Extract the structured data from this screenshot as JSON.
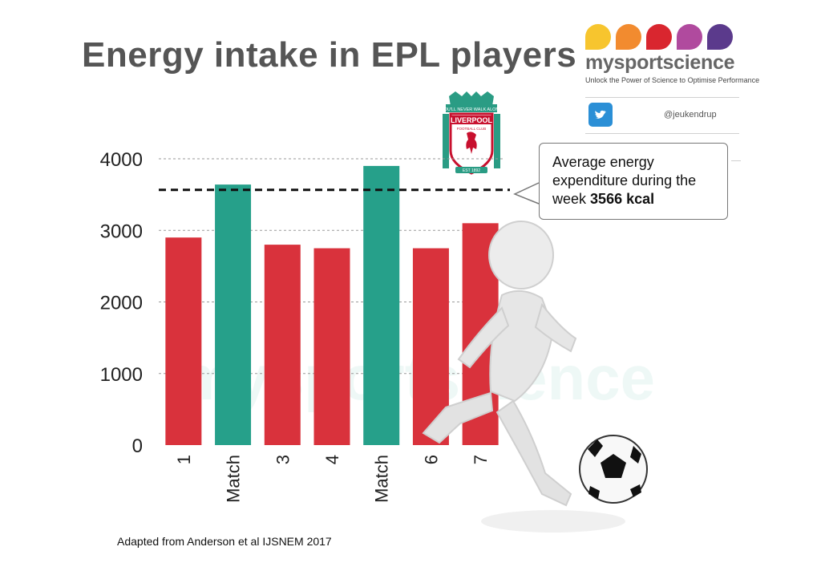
{
  "title": "Energy intake in EPL players",
  "brand": {
    "name": "mysportscience",
    "tagline": "Unlock the Power of Science to Optimise Performance",
    "handle": "@jeukendrup",
    "drop_colors": [
      "#f7c52e",
      "#f28b2f",
      "#d9262f",
      "#b04a9e",
      "#5b3a8c"
    ],
    "watermark": "mysportscience"
  },
  "crest": {
    "banner": "YOU'LL NEVER WALK ALONE",
    "name": "LIVERPOOL",
    "sub": "FOOTBALL CLUB",
    "est": "EST 1892"
  },
  "callout": {
    "text": "Average energy expenditure during the week",
    "value": "3566 kcal"
  },
  "source": "Adapted from Anderson et al IJSNEM 2017",
  "colors": {
    "training": "#d9323c",
    "match": "#26a08a"
  },
  "chart_data": {
    "type": "bar",
    "categories": [
      "1",
      "Match",
      "3",
      "4",
      "Match",
      "6",
      "7"
    ],
    "values": [
      2900,
      3640,
      2800,
      2750,
      3900,
      2750,
      3100
    ],
    "kinds": [
      "training",
      "match",
      "training",
      "training",
      "match",
      "training",
      "training"
    ],
    "reference_line": 3566,
    "ylim": [
      0,
      4000
    ],
    "yticks": [
      "0",
      "1000",
      "2000",
      "3000",
      "4000"
    ],
    "ytick_values": [
      0,
      1000,
      2000,
      3000,
      4000
    ],
    "grid": true
  }
}
